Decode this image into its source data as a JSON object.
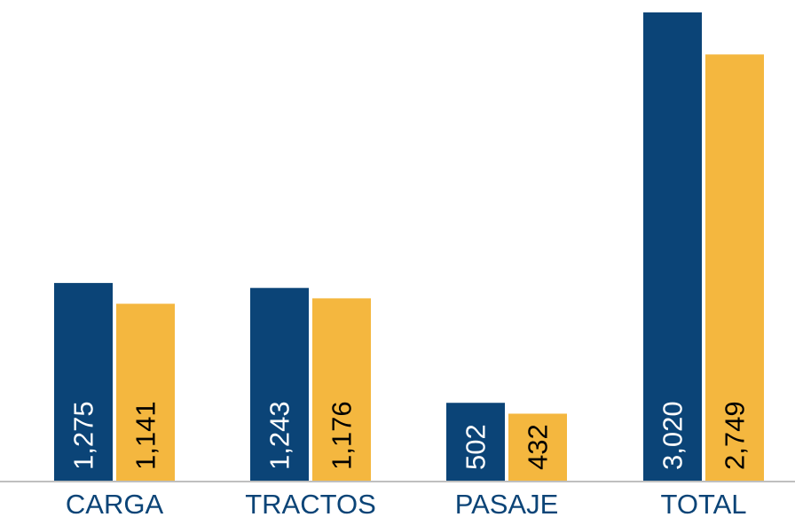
{
  "chart_data": {
    "type": "bar",
    "categories": [
      "CARGA",
      "TRACTOS",
      "PASAJE",
      "TOTAL"
    ],
    "series": [
      {
        "values": [
          1275,
          1243,
          502,
          3020
        ],
        "labels": [
          "1,275",
          "1,243",
          "502",
          "3,020"
        ],
        "color": "#0B4477",
        "label_color": "#ffffff"
      },
      {
        "values": [
          1141,
          1176,
          432,
          2749
        ],
        "labels": [
          "1,141",
          "1,176",
          "432",
          "2,749"
        ],
        "color": "#F4B73F",
        "label_color": "#000000"
      }
    ],
    "title": "",
    "xlabel": "",
    "ylabel": "",
    "ylim": [
      0,
      3020
    ],
    "grid": false,
    "legend": "none",
    "axis_color": "#BFBFBF"
  }
}
